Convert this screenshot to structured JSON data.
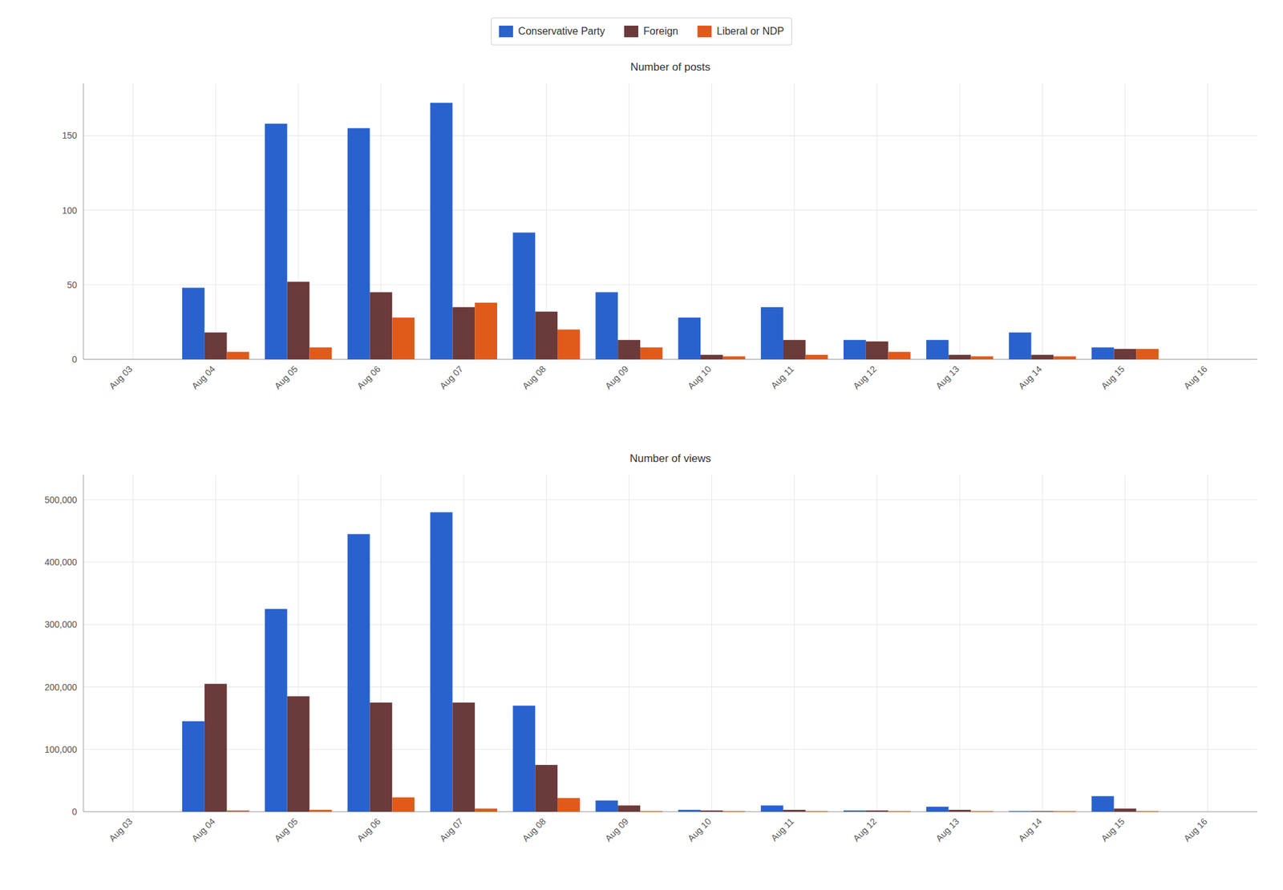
{
  "chart_data": [
    {
      "type": "bar",
      "title": "Number of posts",
      "categories": [
        "Aug 03",
        "Aug 04",
        "Aug 05",
        "Aug 06",
        "Aug 07",
        "Aug 08",
        "Aug 09",
        "Aug 10",
        "Aug 11",
        "Aug 12",
        "Aug 13",
        "Aug 14",
        "Aug 15",
        "Aug 16"
      ],
      "series": [
        {
          "name": "Conservative Party",
          "color": "#2962CC",
          "values": [
            0,
            48,
            158,
            155,
            172,
            85,
            45,
            28,
            35,
            13,
            13,
            18,
            8,
            0
          ]
        },
        {
          "name": "Foreign",
          "color": "#6B3A3A",
          "values": [
            0,
            18,
            52,
            45,
            35,
            32,
            13,
            3,
            13,
            12,
            3,
            3,
            7,
            0
          ]
        },
        {
          "name": "Liberal or NDP",
          "color": "#E05A1A",
          "values": [
            0,
            5,
            8,
            28,
            38,
            20,
            8,
            2,
            3,
            5,
            2,
            2,
            7,
            0
          ]
        }
      ],
      "ylim": [
        0,
        185
      ],
      "yticks": [
        0,
        50,
        100,
        150
      ],
      "grid": true,
      "legend": "top"
    },
    {
      "type": "bar",
      "title": "Number of views",
      "categories": [
        "Aug 03",
        "Aug 04",
        "Aug 05",
        "Aug 06",
        "Aug 07",
        "Aug 08",
        "Aug 09",
        "Aug 10",
        "Aug 11",
        "Aug 12",
        "Aug 13",
        "Aug 14",
        "Aug 15",
        "Aug 16"
      ],
      "series": [
        {
          "color": "#2962CC",
          "values": [
            0,
            145000,
            325000,
            445000,
            480000,
            170000,
            18000,
            3000,
            10000,
            2000,
            8000,
            1000,
            25000,
            0
          ]
        },
        {
          "color": "#6B3A3A",
          "values": [
            0,
            205000,
            185000,
            175000,
            175000,
            75000,
            10000,
            2000,
            3000,
            2000,
            3000,
            1000,
            5000,
            0
          ]
        },
        {
          "color": "#E05A1A",
          "values": [
            0,
            2000,
            3000,
            23000,
            5000,
            22000,
            1000,
            1000,
            1000,
            1000,
            1000,
            1000,
            1000,
            0
          ]
        }
      ],
      "ylim": [
        0,
        540000
      ],
      "yticks": [
        0,
        {
          "value": 100000,
          "label": "100,000"
        },
        {
          "value": 200000,
          "label": "200,000"
        },
        {
          "value": 300000,
          "label": "300,000"
        },
        {
          "value": 400000,
          "label": "400,000"
        },
        {
          "value": 500000,
          "label": "500,000"
        }
      ],
      "grid": true
    }
  ]
}
